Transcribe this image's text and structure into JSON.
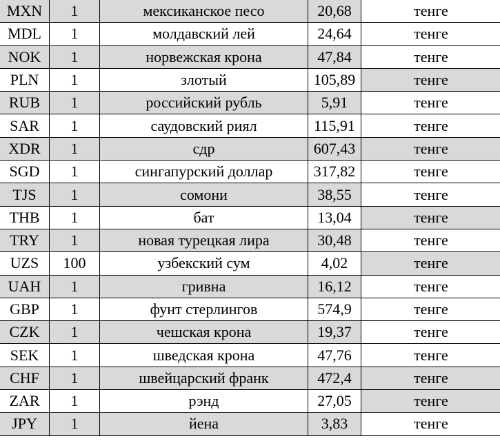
{
  "colors": {
    "shade": "#d9d9d9",
    "border": "#000000"
  },
  "rows": [
    {
      "code": "MXN",
      "amount": "1",
      "name": "мексиканское песо",
      "rate": "20,68",
      "unit": "тенге",
      "row_shaded": true,
      "unit_shaded": false
    },
    {
      "code": "MDL",
      "amount": "1",
      "name": "молдавский лей",
      "rate": "24,64",
      "unit": "тенге",
      "row_shaded": false,
      "unit_shaded": false
    },
    {
      "code": "NOK",
      "amount": "1",
      "name": "норвежская крона",
      "rate": "47,84",
      "unit": "тенге",
      "row_shaded": true,
      "unit_shaded": false
    },
    {
      "code": "PLN",
      "amount": "1",
      "name": "злотый",
      "rate": "105,89",
      "unit": "тенге",
      "row_shaded": false,
      "unit_shaded": true
    },
    {
      "code": "RUB",
      "amount": "1",
      "name": "российский рубль",
      "rate": "5,91",
      "unit": "тенге",
      "row_shaded": true,
      "unit_shaded": false
    },
    {
      "code": "SAR",
      "amount": "1",
      "name": "саудовский риял",
      "rate": "115,91",
      "unit": "тенге",
      "row_shaded": false,
      "unit_shaded": false
    },
    {
      "code": "XDR",
      "amount": "1",
      "name": "сдр",
      "rate": "607,43",
      "unit": "тенге",
      "row_shaded": true,
      "unit_shaded": true
    },
    {
      "code": "SGD",
      "amount": "1",
      "name": "сингапурский доллар",
      "rate": "317,82",
      "unit": "тенге",
      "row_shaded": false,
      "unit_shaded": false
    },
    {
      "code": "TJS",
      "amount": "1",
      "name": "сомони",
      "rate": "38,55",
      "unit": "тенге",
      "row_shaded": true,
      "unit_shaded": false
    },
    {
      "code": "THB",
      "amount": "1",
      "name": "бат",
      "rate": "13,04",
      "unit": "тенге",
      "row_shaded": false,
      "unit_shaded": true
    },
    {
      "code": "TRY",
      "amount": "1",
      "name": "новая турецкая лира",
      "rate": "30,48",
      "unit": "тенге",
      "row_shaded": true,
      "unit_shaded": false
    },
    {
      "code": "UZS",
      "amount": "100",
      "name": "узбекский сум",
      "rate": "4,02",
      "unit": "тенге",
      "row_shaded": false,
      "unit_shaded": true
    },
    {
      "code": "UAH",
      "amount": "1",
      "name": "гривна",
      "rate": "16,12",
      "unit": "тенге",
      "row_shaded": true,
      "unit_shaded": false
    },
    {
      "code": "GBP",
      "amount": "1",
      "name": "фунт стерлингов",
      "rate": "574,9",
      "unit": "тенге",
      "row_shaded": false,
      "unit_shaded": false
    },
    {
      "code": "CZK",
      "amount": "1",
      "name": "чешская крона",
      "rate": "19,37",
      "unit": "тенге",
      "row_shaded": true,
      "unit_shaded": false
    },
    {
      "code": "SEK",
      "amount": "1",
      "name": "шведская крона",
      "rate": "47,76",
      "unit": "тенге",
      "row_shaded": false,
      "unit_shaded": false
    },
    {
      "code": "CHF",
      "amount": "1",
      "name": "швейцарский франк",
      "rate": "472,4",
      "unit": "тенге",
      "row_shaded": true,
      "unit_shaded": true
    },
    {
      "code": "ZAR",
      "amount": "1",
      "name": "рэнд",
      "rate": "27,05",
      "unit": "тенге",
      "row_shaded": false,
      "unit_shaded": true
    },
    {
      "code": "JPY",
      "amount": "1",
      "name": "йена",
      "rate": "3,83",
      "unit": "тенге",
      "row_shaded": true,
      "unit_shaded": false
    }
  ]
}
